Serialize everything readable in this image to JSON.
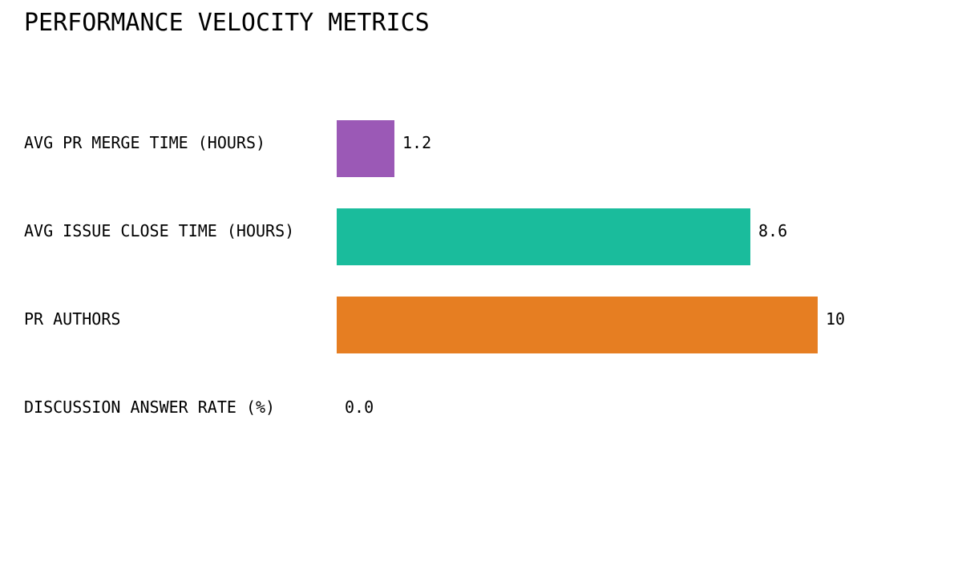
{
  "page": {
    "background": "#ffffff",
    "text_color": "#000000"
  },
  "chart_data": {
    "type": "bar",
    "orientation": "horizontal",
    "title": "PERFORMANCE VELOCITY METRICS",
    "categories": [
      "AVG PR MERGE TIME (HOURS)",
      "AVG ISSUE CLOSE TIME (HOURS)",
      "PR AUTHORS",
      "DISCUSSION ANSWER RATE (%)"
    ],
    "values": [
      1.2,
      8.6,
      10,
      0.0
    ],
    "value_labels": [
      "1.2",
      "8.6",
      "10",
      "0.0"
    ],
    "bar_colors": [
      "#9b59b6",
      "#1abc9c",
      "#e67e22",
      null
    ],
    "xlim": [
      0,
      10
    ],
    "grid": false,
    "legend": false,
    "axes_visible": false,
    "background": "#ffffff",
    "text_color": "#000000"
  }
}
